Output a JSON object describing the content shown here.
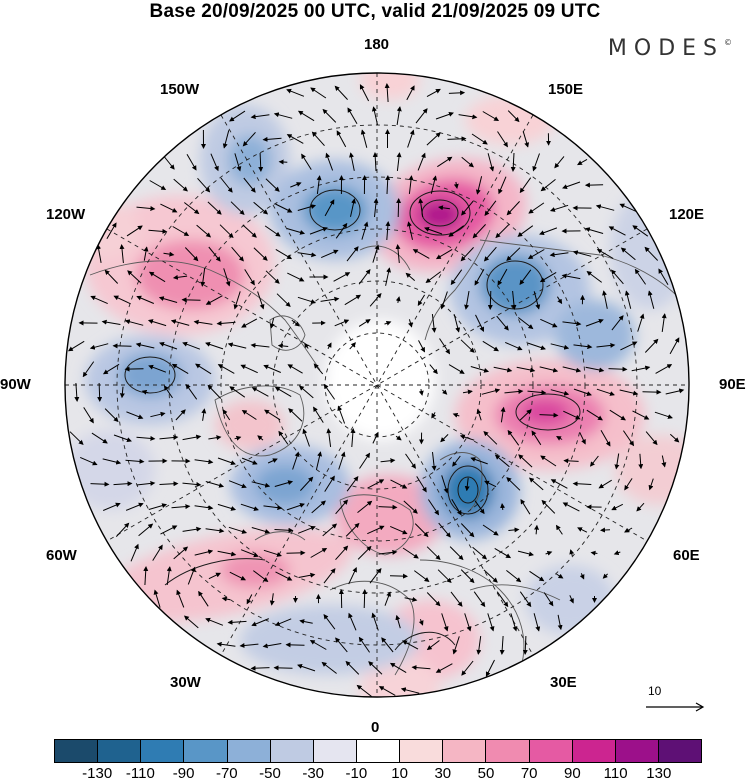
{
  "title": "Base 20/09/2025 00 UTC, valid 21/09/2025 09 UTC",
  "brand": "MODES",
  "brand_mark": "©",
  "longitude_labels": {
    "top": "180",
    "bottom": "0",
    "left": "90W",
    "right": "90E",
    "upper_left_1": "150W",
    "upper_left_2": "120W",
    "upper_right_1": "150E",
    "upper_right_2": "120E",
    "lower_left_1": "60W",
    "lower_left_2": "30W",
    "lower_right_1": "60E",
    "lower_right_2": "30E"
  },
  "vector_reference": "10",
  "colorbar": {
    "colors": [
      "#1b4a6b",
      "#1f628f",
      "#2f7cb3",
      "#5996c7",
      "#8db0d8",
      "#bfcbe3",
      "#e5e5f0",
      "#ffffff",
      "#f9dcdc",
      "#f5b6c4",
      "#f08bb0",
      "#e55aa3",
      "#cc2590",
      "#9c108a",
      "#5e1075"
    ],
    "labels": [
      "-130",
      "-110",
      "-90",
      "-70",
      "-50",
      "-30",
      "-10",
      "10",
      "30",
      "50",
      "70",
      "90",
      "110",
      "130"
    ]
  }
}
